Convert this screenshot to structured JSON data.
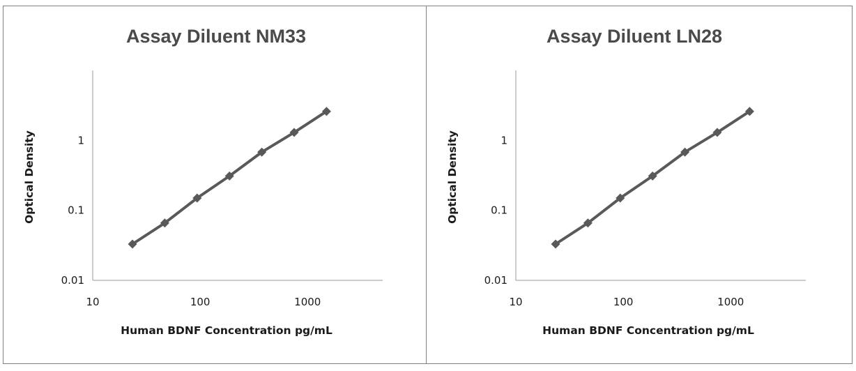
{
  "chart_data": [
    {
      "type": "line",
      "title": "Assay Diluent NM33",
      "xlabel": "Human BDNF Concentration pg/mL",
      "ylabel": "Optical Density",
      "x_scale": "log",
      "y_scale": "log",
      "xlim": [
        10,
        5000
      ],
      "ylim": [
        0.01,
        10
      ],
      "xticks": [
        "10",
        "100",
        "1000"
      ],
      "yticks": [
        "0.01",
        "0.1",
        "1"
      ],
      "grid": false,
      "legend": "none",
      "marker": "diamond",
      "series": [
        {
          "color": "#595959",
          "x": [
            23.44,
            46.88,
            93.75,
            187.5,
            375,
            750,
            1500
          ],
          "y": [
            0.033,
            0.066,
            0.15,
            0.31,
            0.68,
            1.3,
            2.6
          ]
        }
      ]
    },
    {
      "type": "line",
      "title": "Assay Diluent LN28",
      "xlabel": "Human BDNF Concentration pg/mL",
      "ylabel": "Optical Density",
      "x_scale": "log",
      "y_scale": "log",
      "xlim": [
        10,
        5000
      ],
      "ylim": [
        0.01,
        10
      ],
      "xticks": [
        "10",
        "100",
        "1000"
      ],
      "yticks": [
        "0.01",
        "0.1",
        "1"
      ],
      "grid": false,
      "legend": "none",
      "marker": "diamond",
      "series": [
        {
          "color": "#595959",
          "x": [
            23.44,
            46.88,
            93.75,
            187.5,
            375,
            750,
            1500
          ],
          "y": [
            0.033,
            0.066,
            0.15,
            0.31,
            0.68,
            1.3,
            2.6
          ]
        }
      ]
    }
  ]
}
